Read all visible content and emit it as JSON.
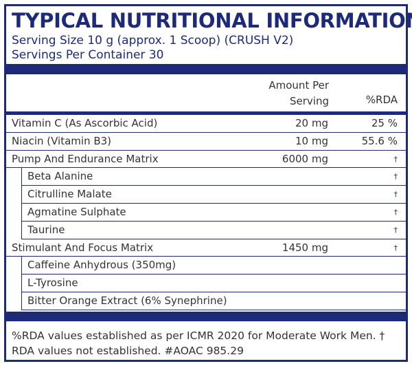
{
  "header": {
    "title": "TYPICAL NUTRITIONAL INFORMATION",
    "serving_size": "Serving Size 10 g (approx. 1 Scoop) (CRUSH V2)",
    "servings": "Servings Per Container 30"
  },
  "table": {
    "columns": [
      "Amount Per Serving",
      "%RDA"
    ],
    "rows": [
      {
        "name": "Vitamin C (As Ascorbic Acid)",
        "amount": "20 mg",
        "rda": "25 %"
      },
      {
        "name": "Niacin (Vitamin B3)",
        "amount": "10 mg",
        "rda": "55.6 %"
      },
      {
        "name": "Pump And Endurance Matrix",
        "amount": "6000 mg",
        "rda": "†"
      },
      {
        "name": "Beta Alanine",
        "rda": "†",
        "sub": true
      },
      {
        "name": "Citrulline Malate",
        "rda": "†",
        "sub": true
      },
      {
        "name": "Agmatine Sulphate",
        "rda": "†",
        "sub": true
      },
      {
        "name": "Taurine",
        "rda": "†",
        "sub": true
      },
      {
        "name": "Stimulant And Focus Matrix",
        "amount": "1450 mg",
        "rda": "†"
      },
      {
        "name": "Caffeine Anhydrous (350mg)",
        "sub": true
      },
      {
        "name": "L-Tyrosine",
        "sub": true
      },
      {
        "name": "Bitter Orange Extract (6% Synephrine)",
        "sub": true
      }
    ]
  },
  "footer": "%RDA values established as per ICMR 2020 for Moderate Work Men. † RDA values not established. #AOAC 985.29"
}
